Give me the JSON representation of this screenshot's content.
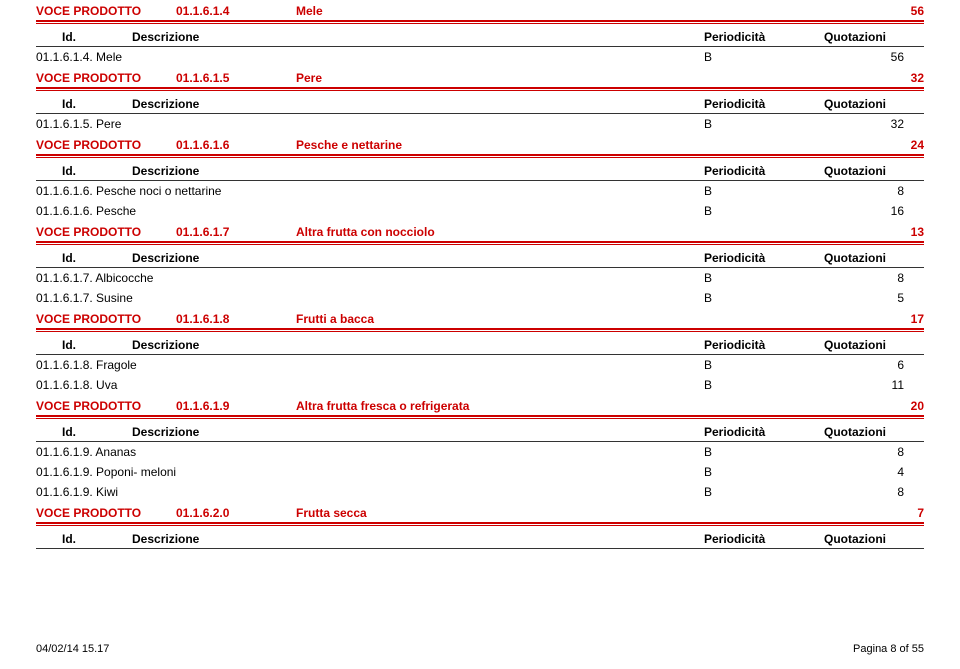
{
  "colors": {
    "red": "#cc0000",
    "black": "#000000",
    "line": "#333333"
  },
  "labels": {
    "voce_prodotto": "VOCE PRODOTTO",
    "id": "Id.",
    "descrizione": "Descrizione",
    "periodicita": "Periodicità",
    "quotazioni": "Quotazioni"
  },
  "sections": [
    {
      "code": "01.1.6.1.4",
      "name": "Mele",
      "count": "56",
      "show_col_header": true,
      "rows": [
        {
          "id": "01.1.6.1.4.",
          "desc": "Mele",
          "per": "B",
          "quo": "56"
        }
      ]
    },
    {
      "code": "01.1.6.1.5",
      "name": "Pere",
      "count": "32",
      "show_col_header": true,
      "rows": [
        {
          "id": "01.1.6.1.5.",
          "desc": "Pere",
          "per": "B",
          "quo": "32"
        }
      ]
    },
    {
      "code": "01.1.6.1.6",
      "name": "Pesche e nettarine",
      "count": "24",
      "show_col_header": true,
      "rows": [
        {
          "id": "01.1.6.1.6.",
          "desc": "Pesche noci o nettarine",
          "per": "B",
          "quo": "8"
        },
        {
          "id": "01.1.6.1.6.",
          "desc": "Pesche",
          "per": "B",
          "quo": "16"
        }
      ]
    },
    {
      "code": "01.1.6.1.7",
      "name": "Altra frutta con nocciolo",
      "count": "13",
      "show_col_header": true,
      "rows": [
        {
          "id": "01.1.6.1.7.",
          "desc": "Albicocche",
          "per": "B",
          "quo": "8"
        },
        {
          "id": "01.1.6.1.7.",
          "desc": "Susine",
          "per": "B",
          "quo": "5"
        }
      ]
    },
    {
      "code": "01.1.6.1.8",
      "name": "Frutti a bacca",
      "count": "17",
      "show_col_header": true,
      "rows": [
        {
          "id": "01.1.6.1.8.",
          "desc": "Fragole",
          "per": "B",
          "quo": "6"
        },
        {
          "id": "01.1.6.1.8.",
          "desc": "Uva",
          "per": "B",
          "quo": "11"
        }
      ]
    },
    {
      "code": "01.1.6.1.9",
      "name": "Altra frutta fresca o refrigerata",
      "count": "20",
      "show_col_header": true,
      "rows": [
        {
          "id": "01.1.6.1.9.",
          "desc": "Ananas",
          "per": "B",
          "quo": "8"
        },
        {
          "id": "01.1.6.1.9.",
          "desc": "Poponi- meloni",
          "per": "B",
          "quo": "4"
        },
        {
          "id": "01.1.6.1.9.",
          "desc": "Kiwi",
          "per": "B",
          "quo": "8"
        }
      ]
    },
    {
      "code": "01.1.6.2.0",
      "name": "Frutta secca",
      "count": "7",
      "show_col_header": true,
      "rows": []
    }
  ],
  "footer": {
    "left": "04/02/14 15.17",
    "right": "Pagina 8 of 55"
  }
}
